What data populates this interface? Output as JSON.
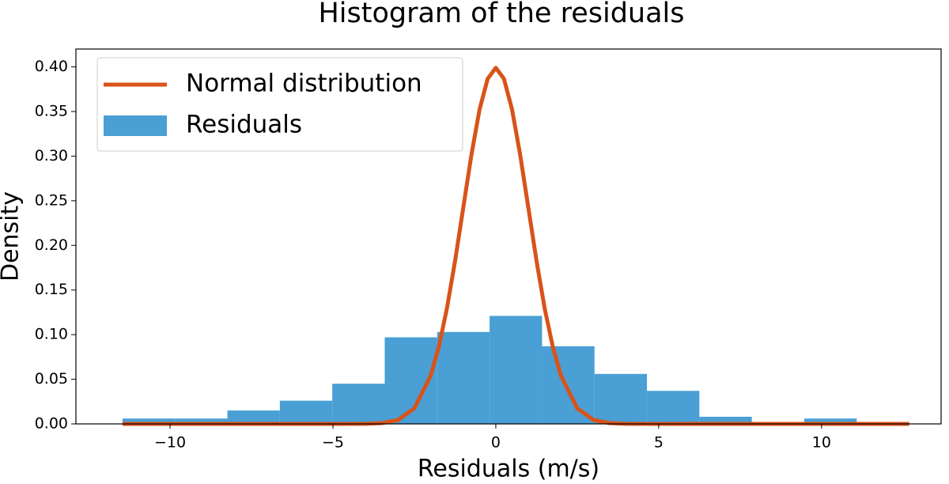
{
  "chart_data": {
    "type": "histogram",
    "title": "Histogram of the residuals",
    "x_label": "Residuals (m/s)",
    "y_label": "Density",
    "xlim": [
      -12.89,
      13.67
    ],
    "ylim": [
      0,
      0.42
    ],
    "xticks": [
      {
        "value": -10,
        "label": "−10"
      },
      {
        "value": -5,
        "label": "−5"
      },
      0,
      5,
      10
    ],
    "yticks": [
      {
        "value": 0,
        "label": "0.00"
      },
      {
        "value": 0.05,
        "label": "0.05"
      },
      {
        "value": 0.1,
        "label": "0.10"
      },
      {
        "value": 0.15,
        "label": "0.15"
      },
      {
        "value": 0.2,
        "label": "0.20"
      },
      {
        "value": 0.25,
        "label": "0.25"
      },
      {
        "value": 0.3,
        "label": "0.30"
      },
      {
        "value": 0.35,
        "label": "0.35"
      },
      {
        "value": 0.4,
        "label": "0.40"
      }
    ],
    "legend": "upper left",
    "series": [
      {
        "name": "Normal distribution",
        "type": "line",
        "color": "#d95319",
        "x": [
          -11.46,
          -5,
          -4,
          -3.5,
          -3,
          -2.5,
          -2,
          -1.75,
          -1.5,
          -1.25,
          -1,
          -0.75,
          -0.5,
          -0.25,
          0,
          0.25,
          0.5,
          0.75,
          1,
          1.25,
          1.5,
          1.75,
          2,
          2.5,
          3,
          3.5,
          4,
          5,
          12.69
        ],
        "values": [
          0,
          1.5e-06,
          0.0001,
          0.0009,
          0.0044,
          0.0175,
          0.054,
          0.0863,
          0.1295,
          0.1826,
          0.242,
          0.3011,
          0.3521,
          0.3867,
          0.399,
          0.3867,
          0.3521,
          0.3011,
          0.242,
          0.1826,
          0.1295,
          0.0863,
          0.054,
          0.0175,
          0.0044,
          0.0009,
          0.0001,
          1.5e-06,
          0
        ]
      },
      {
        "name": "Residuals",
        "type": "histogram",
        "color": "#4a9fd4",
        "bins": [
          -11.46,
          -9.85,
          -8.24,
          -6.63,
          -5.02,
          -3.41,
          -1.8,
          -0.19,
          1.42,
          3.03,
          4.64,
          6.25,
          7.86,
          9.47,
          11.08
        ],
        "values": [
          0.006,
          0.006,
          0.015,
          0.026,
          0.045,
          0.097,
          0.103,
          0.121,
          0.087,
          0.056,
          0.037,
          0.008,
          0,
          0.006
        ]
      }
    ]
  }
}
